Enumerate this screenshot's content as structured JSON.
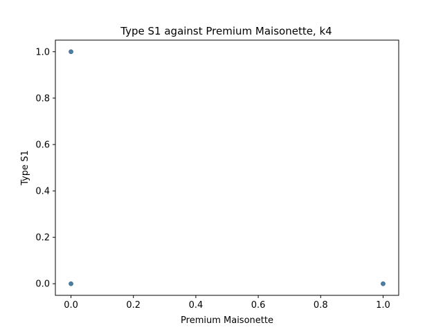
{
  "chart_data": {
    "type": "scatter",
    "title": "Type S1 against Premium Maisonette, k4",
    "xlabel": "Premium Maisonette",
    "ylabel": "Type S1",
    "xlim": [
      -0.05,
      1.05
    ],
    "ylim": [
      -0.05,
      1.05
    ],
    "x_ticks": [
      0.0,
      0.2,
      0.4,
      0.6,
      0.8,
      1.0
    ],
    "x_tick_labels": [
      "0.0",
      "0.2",
      "0.4",
      "0.6",
      "0.8",
      "1.0"
    ],
    "y_ticks": [
      0.0,
      0.2,
      0.4,
      0.6,
      0.8,
      1.0
    ],
    "y_tick_labels": [
      "0.0",
      "0.2",
      "0.4",
      "0.6",
      "0.8",
      "1.0"
    ],
    "grid": false,
    "marker_color": "#3a6f96",
    "points": [
      {
        "x": 0.0,
        "y": 1.0
      },
      {
        "x": 0.0,
        "y": 0.0
      },
      {
        "x": 1.0,
        "y": 0.0
      }
    ]
  }
}
